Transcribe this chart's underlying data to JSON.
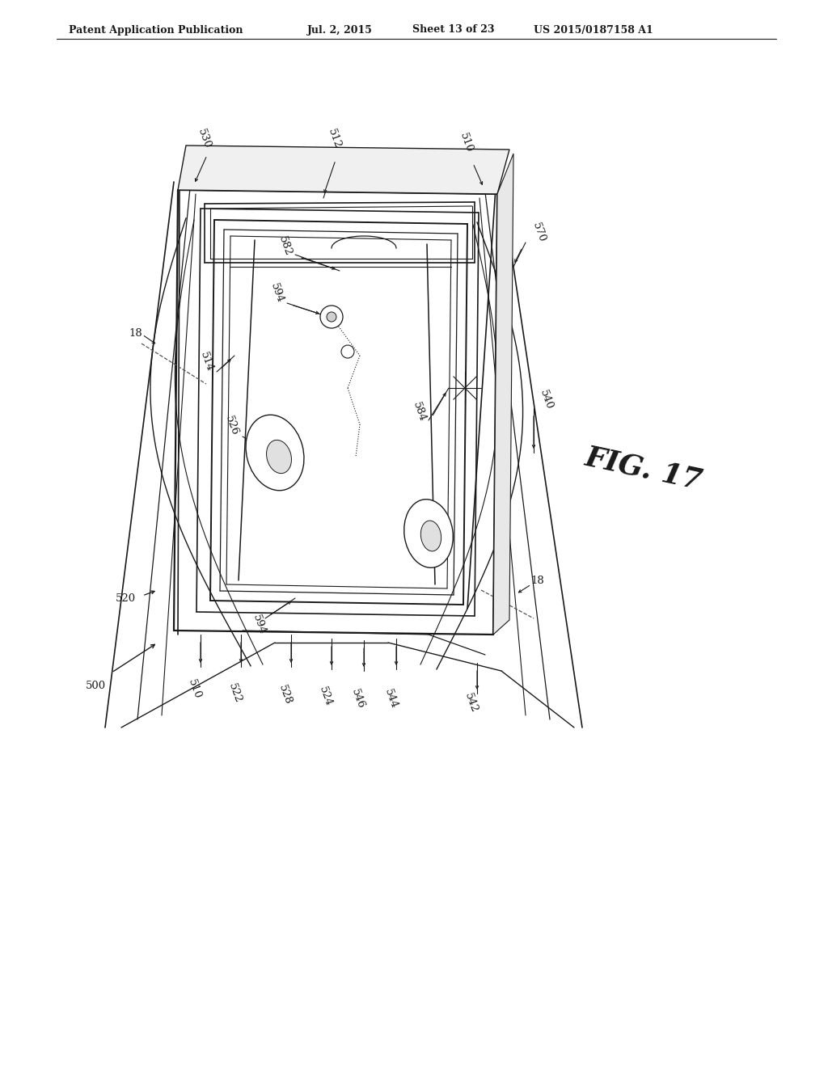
{
  "bg_color": "#ffffff",
  "line_color": "#1a1a1a",
  "header_text": "Patent Application Publication",
  "header_date": "Jul. 2, 2015",
  "header_sheet": "Sheet 13 of 23",
  "header_patent": "US 2015/0187158 A1",
  "fig_label": "FIG. 17",
  "figsize": [
    10.24,
    13.2
  ],
  "dpi": 100
}
